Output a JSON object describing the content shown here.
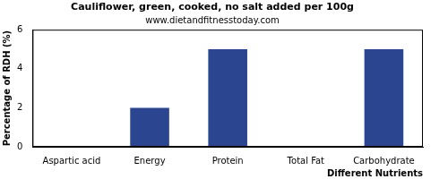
{
  "chart_data": {
    "type": "bar",
    "title": "Cauliflower, green, cooked, no salt added per 100g",
    "subtitle": "www.dietandfitnesstoday.com",
    "x_label": "Different Nutrients",
    "y_label": "Percentage of RDH (%)",
    "categories": [
      "Aspartic acid",
      "Energy",
      "Protein",
      "Total Fat",
      "Carbohydrate"
    ],
    "values": [
      0,
      2,
      5,
      0,
      5
    ],
    "color": "#2b4590",
    "ylim": [
      0,
      6
    ],
    "yticks": [
      0,
      2,
      4,
      6
    ],
    "grid": false
  }
}
